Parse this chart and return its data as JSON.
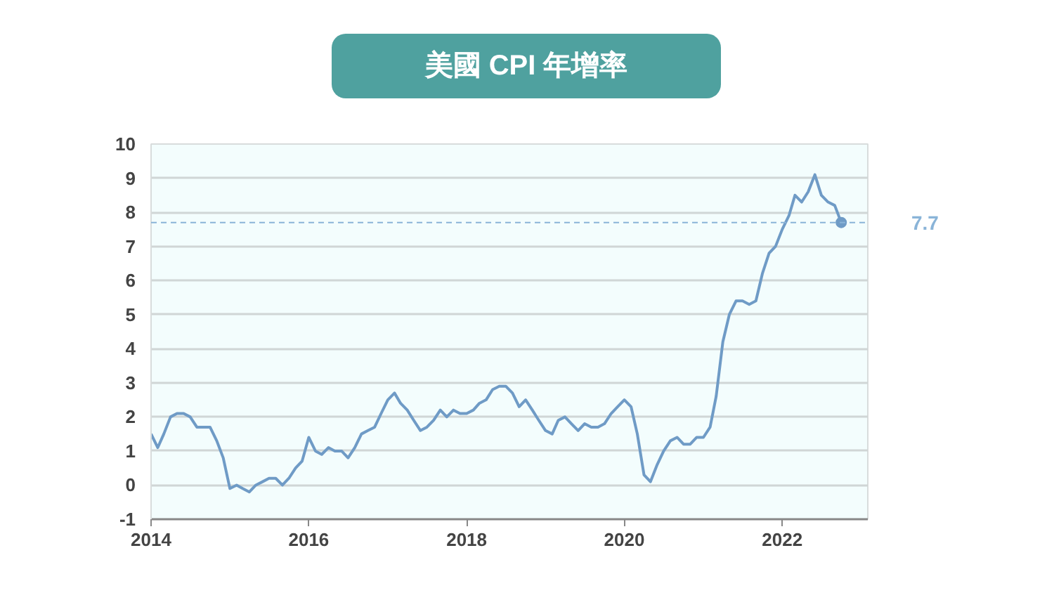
{
  "chart_data": {
    "type": "line",
    "title": "美國 CPI 年增率",
    "x": [
      "2014-01",
      "2014-02",
      "2014-03",
      "2014-04",
      "2014-05",
      "2014-06",
      "2014-07",
      "2014-08",
      "2014-09",
      "2014-10",
      "2014-11",
      "2014-12",
      "2015-01",
      "2015-02",
      "2015-03",
      "2015-04",
      "2015-05",
      "2015-06",
      "2015-07",
      "2015-08",
      "2015-09",
      "2015-10",
      "2015-11",
      "2015-12",
      "2016-01",
      "2016-02",
      "2016-03",
      "2016-04",
      "2016-05",
      "2016-06",
      "2016-07",
      "2016-08",
      "2016-09",
      "2016-10",
      "2016-11",
      "2016-12",
      "2017-01",
      "2017-02",
      "2017-03",
      "2017-04",
      "2017-05",
      "2017-06",
      "2017-07",
      "2017-08",
      "2017-09",
      "2017-10",
      "2017-11",
      "2017-12",
      "2018-01",
      "2018-02",
      "2018-03",
      "2018-04",
      "2018-05",
      "2018-06",
      "2018-07",
      "2018-08",
      "2018-09",
      "2018-10",
      "2018-11",
      "2018-12",
      "2019-01",
      "2019-02",
      "2019-03",
      "2019-04",
      "2019-05",
      "2019-06",
      "2019-07",
      "2019-08",
      "2019-09",
      "2019-10",
      "2019-11",
      "2019-12",
      "2020-01",
      "2020-02",
      "2020-03",
      "2020-04",
      "2020-05",
      "2020-06",
      "2020-07",
      "2020-08",
      "2020-09",
      "2020-10",
      "2020-11",
      "2020-12",
      "2021-01",
      "2021-02",
      "2021-03",
      "2021-04",
      "2021-05",
      "2021-06",
      "2021-07",
      "2021-08",
      "2021-09",
      "2021-10",
      "2021-11",
      "2021-12",
      "2022-01",
      "2022-02",
      "2022-03",
      "2022-04",
      "2022-05",
      "2022-06",
      "2022-07",
      "2022-08",
      "2022-09",
      "2022-10"
    ],
    "series": [
      {
        "color": "#6f9bc6",
        "values": [
          1.5,
          1.1,
          1.5,
          2.0,
          2.1,
          2.1,
          2.0,
          1.7,
          1.7,
          1.7,
          1.3,
          0.8,
          -0.1,
          0.0,
          -0.1,
          -0.2,
          0.0,
          0.1,
          0.2,
          0.2,
          0.0,
          0.2,
          0.5,
          0.7,
          1.4,
          1.0,
          0.9,
          1.1,
          1.0,
          1.0,
          0.8,
          1.1,
          1.5,
          1.6,
          1.7,
          2.1,
          2.5,
          2.7,
          2.4,
          2.2,
          1.9,
          1.6,
          1.7,
          1.9,
          2.2,
          2.0,
          2.2,
          2.1,
          2.1,
          2.2,
          2.4,
          2.5,
          2.8,
          2.9,
          2.9,
          2.7,
          2.3,
          2.5,
          2.2,
          1.9,
          1.6,
          1.5,
          1.9,
          2.0,
          1.8,
          1.6,
          1.8,
          1.7,
          1.7,
          1.8,
          2.1,
          2.3,
          2.5,
          2.3,
          1.5,
          0.3,
          0.1,
          0.6,
          1.0,
          1.3,
          1.4,
          1.2,
          1.2,
          1.4,
          1.4,
          1.7,
          2.6,
          4.2,
          5.0,
          5.4,
          5.4,
          5.3,
          5.4,
          6.2,
          6.8,
          7.0,
          7.5,
          7.9,
          8.5,
          8.3,
          8.6,
          9.1,
          8.5,
          8.3,
          8.2,
          7.7
        ]
      }
    ],
    "xlim": [
      "2014-01",
      "2023-02"
    ],
    "xticks": [
      "2014",
      "2016",
      "2018",
      "2020",
      "2022"
    ],
    "ylim": [
      -1,
      10
    ],
    "yticks": [
      -1,
      0,
      1,
      2,
      3,
      4,
      5,
      6,
      7,
      8,
      9,
      10
    ],
    "grid": "y",
    "ref_lines": [
      {
        "axis": "y",
        "value": 7.7,
        "label": "7.7",
        "color": "#8ab4d8",
        "line_style": "dashed"
      }
    ]
  }
}
